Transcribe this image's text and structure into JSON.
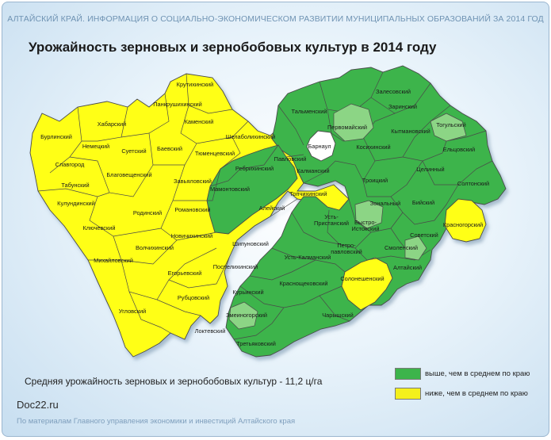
{
  "header": "АЛТАЙСКИЙ КРАЙ. ИНФОРМАЦИЯ О СОЦИАЛЬНО-ЭКОНОМИЧЕСКОМ РАЗВИТИИ МУНИЦИПАЛЬНЫХ ОБРАЗОВАНИЙ  ЗА 2014 ГОД",
  "title": "Урожайность зерновых и зернобобовых культур в 2014 году",
  "colors": {
    "above": "#3cb44b",
    "above_light": "#8cd585",
    "below": "#ffff14",
    "city": "#ffffff",
    "border": "#4a4a4a"
  },
  "legend": [
    {
      "key": "above",
      "label": "выше, чем в среднем по краю",
      "color": "#3cb44b"
    },
    {
      "key": "below",
      "label": "ниже, чем в среднем по краю",
      "color": "#f4f01c"
    }
  ],
  "average_text": "Средняя урожайность зерновых и зернобобовых культур  - 11,2 ц/га",
  "source": {
    "site": "Doc22.ru",
    "note": "По материалам Главного управления экономики и инвестиций Алтайского края"
  },
  "districts": [
    {
      "name": "Крутихинский",
      "category": "below"
    },
    {
      "name": "Панкрушихинский",
      "category": "below"
    },
    {
      "name": "Хабарский",
      "category": "below"
    },
    {
      "name": "Бурлинский",
      "category": "below"
    },
    {
      "name": "Немецкий",
      "category": "below"
    },
    {
      "name": "Каменский",
      "category": "below"
    },
    {
      "name": "Суетский",
      "category": "below"
    },
    {
      "name": "Баевский",
      "category": "below"
    },
    {
      "name": "Славгород",
      "category": "below"
    },
    {
      "name": "Тюменцевский",
      "category": "below"
    },
    {
      "name": "Шелаболихинский",
      "category": "below"
    },
    {
      "name": "Благовещенский",
      "category": "below"
    },
    {
      "name": "Табунский",
      "category": "below"
    },
    {
      "name": "Завьяловский",
      "category": "below"
    },
    {
      "name": "Кулундинский",
      "category": "below"
    },
    {
      "name": "Родинский",
      "category": "below"
    },
    {
      "name": "Романовский",
      "category": "below"
    },
    {
      "name": "Ключевский",
      "category": "below"
    },
    {
      "name": "Новичихинский",
      "category": "below"
    },
    {
      "name": "Волчихинский",
      "category": "below"
    },
    {
      "name": "Михайловский",
      "category": "below"
    },
    {
      "name": "Егорьевский",
      "category": "below"
    },
    {
      "name": "Шипуновский",
      "category": "below"
    },
    {
      "name": "Поспелихинский",
      "category": "below"
    },
    {
      "name": "Рубцовский",
      "category": "below"
    },
    {
      "name": "Угловский",
      "category": "below"
    },
    {
      "name": "Локтевский",
      "category": "below"
    },
    {
      "name": "Алейский",
      "category": "below"
    },
    {
      "name": "Топчихинский",
      "category": "below"
    },
    {
      "name": "Солонешенский",
      "category": "below"
    },
    {
      "name": "Красногорский",
      "category": "below"
    },
    {
      "name": "Курьинский",
      "category": "above"
    },
    {
      "name": "Змеиногорский",
      "category": "above"
    },
    {
      "name": "Третьяковский",
      "category": "above"
    },
    {
      "name": "Краснощековский",
      "category": "above"
    },
    {
      "name": "Чарышский",
      "category": "above"
    },
    {
      "name": "Усть-Калманский",
      "category": "above"
    },
    {
      "name": "Мамонтовский",
      "category": "above"
    },
    {
      "name": "Ребрихинский",
      "category": "above"
    },
    {
      "name": "Павловский",
      "category": "above"
    },
    {
      "name": "Калманский",
      "category": "above"
    },
    {
      "name": "Тальменский",
      "category": "above"
    },
    {
      "name": "Первомайский",
      "category": "above"
    },
    {
      "name": "Залесовский",
      "category": "above"
    },
    {
      "name": "Заринский",
      "category": "above"
    },
    {
      "name": "Кытмановский",
      "category": "above"
    },
    {
      "name": "Тогульский",
      "category": "above"
    },
    {
      "name": "Косихинский",
      "category": "above"
    },
    {
      "name": "Ельцовский",
      "category": "above"
    },
    {
      "name": "Троицкий",
      "category": "above"
    },
    {
      "name": "Целинный",
      "category": "above"
    },
    {
      "name": "Солтонский",
      "category": "above"
    },
    {
      "name": "Зональный",
      "category": "above"
    },
    {
      "name": "Бийский",
      "category": "above"
    },
    {
      "name": "Усть-Пристанский",
      "category": "above"
    },
    {
      "name": "Быстро-Истокский",
      "category": "above"
    },
    {
      "name": "Советский",
      "category": "above"
    },
    {
      "name": "Петро-павловский",
      "category": "above"
    },
    {
      "name": "Смоленский",
      "category": "above"
    },
    {
      "name": "Алтайский",
      "category": "above"
    },
    {
      "name": "Барнаул",
      "category": "city"
    }
  ]
}
